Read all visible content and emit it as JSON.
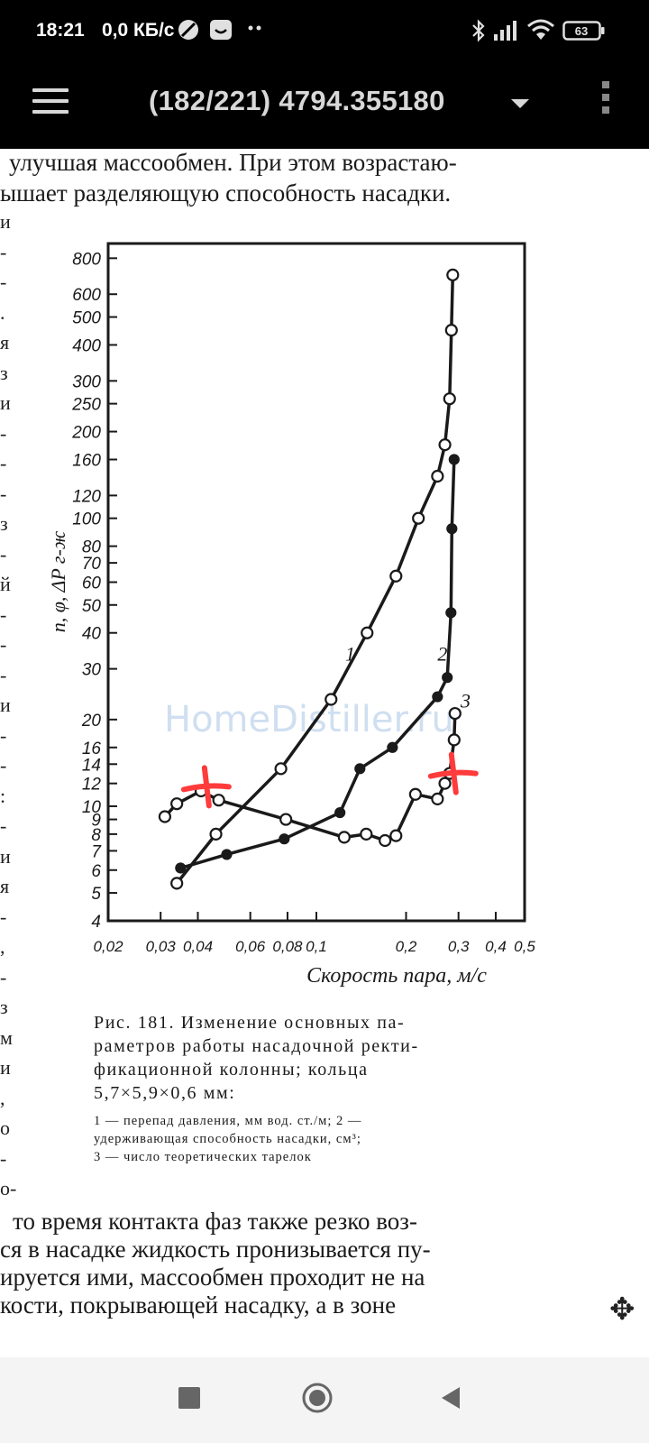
{
  "status_bar": {
    "time": "18:21",
    "speed": "0,0 КБ/с",
    "battery": "63",
    "icons": [
      "no-disturb-icon",
      "face-icon",
      "more-dots-icon",
      "bluetooth-icon",
      "signal-icon",
      "wifi-icon",
      "battery-icon"
    ]
  },
  "app_bar": {
    "title": "(182/221) 4794.355180",
    "icons": [
      "menu-icon",
      "dropdown-arrow-icon",
      "overflow-menu-icon"
    ]
  },
  "document": {
    "top_lines": [
      "улучшая массообмен. При этом возрастаю-",
      "ышает разделяющую способность насадки."
    ],
    "margin_chars": [
      "и",
      "-",
      "-",
      ".",
      "я",
      "з",
      "и",
      "-",
      "-",
      "-",
      "з",
      "-",
      "й",
      "-",
      "-",
      "-",
      "и",
      "-",
      "-",
      ":",
      "-",
      "и",
      "я",
      "-",
      ",",
      "-",
      "з",
      "м",
      "и",
      ",",
      "о",
      "-",
      "о-"
    ],
    "caption": [
      "Рис. 181. Изменение основных па-",
      "раметров работы насадочной ректи-",
      "фикационной колонны; кольца",
      "5,7×5,9×0,6 мм:"
    ],
    "legend": [
      "1 — перепад давления, мм вод. ст./м; 2 —",
      "удерживающая способность насадки, см³;",
      "3 — число теоретических тарелок"
    ],
    "bottom_lines": [
      "то время контакта фаз также резко воз-",
      "ся в насадке жидкость пронизывается пу-",
      "ируется ими, массообмен проходит не на",
      "кости, покрывающей насадку, а в зоне"
    ],
    "watermark": "HomeDistiller.ru"
  },
  "chart_data": {
    "type": "line",
    "ylabel": "n, φ, ΔP г-ж",
    "xlabel": "Скорость пара, м/с",
    "x_scale": "log",
    "y_scale": "log",
    "xlim": [
      0.02,
      0.5
    ],
    "ylim": [
      4,
      900
    ],
    "x_ticks": [
      "0,02",
      "0,03",
      "0,04",
      "0,06",
      "0,08",
      "0,1",
      "0,2",
      "0,3",
      "0,4",
      "0,5"
    ],
    "x_tick_values": [
      0.02,
      0.03,
      0.04,
      0.06,
      0.08,
      0.1,
      0.2,
      0.3,
      0.4,
      0.5
    ],
    "y_ticks": [
      "4",
      "5",
      "6",
      "7",
      "8",
      "9",
      "10",
      "12",
      "14",
      "16",
      "20",
      "30",
      "40",
      "50",
      "60",
      "70",
      "80",
      "100",
      "120",
      "160",
      "200",
      "250",
      "300",
      "400",
      "500",
      "600",
      "800"
    ],
    "y_tick_values": [
      4,
      5,
      6,
      7,
      8,
      9,
      10,
      12,
      14,
      16,
      20,
      30,
      40,
      50,
      60,
      70,
      80,
      100,
      120,
      160,
      200,
      250,
      300,
      400,
      500,
      600,
      800
    ],
    "series": [
      {
        "name": "1",
        "marker": "open",
        "points": [
          [
            0.034,
            5.4
          ],
          [
            0.046,
            8.0
          ],
          [
            0.076,
            13.5
          ],
          [
            0.112,
            23.5
          ],
          [
            0.148,
            40.0
          ],
          [
            0.185,
            63.0
          ],
          [
            0.22,
            100.0
          ],
          [
            0.255,
            140.0
          ],
          [
            0.27,
            180.0
          ],
          [
            0.28,
            260.0
          ],
          [
            0.284,
            450.0
          ],
          [
            0.287,
            700.0
          ]
        ]
      },
      {
        "name": "2",
        "marker": "filled",
        "points": [
          [
            0.035,
            6.1
          ],
          [
            0.05,
            6.8
          ],
          [
            0.078,
            7.7
          ],
          [
            0.12,
            9.5
          ],
          [
            0.14,
            13.5
          ],
          [
            0.18,
            16.0
          ],
          [
            0.255,
            24.0
          ],
          [
            0.275,
            28.0
          ],
          [
            0.283,
            47.0
          ],
          [
            0.285,
            92.0
          ],
          [
            0.29,
            160.0
          ]
        ]
      },
      {
        "name": "3",
        "marker": "open",
        "points": [
          [
            0.031,
            9.2
          ],
          [
            0.034,
            10.2
          ],
          [
            0.041,
            11.3
          ],
          [
            0.047,
            10.5
          ],
          [
            0.079,
            9.0
          ],
          [
            0.124,
            7.8
          ],
          [
            0.147,
            8.0
          ],
          [
            0.17,
            7.6
          ],
          [
            0.185,
            7.9
          ],
          [
            0.215,
            11.0
          ],
          [
            0.255,
            10.6
          ],
          [
            0.27,
            12.0
          ],
          [
            0.28,
            13.0
          ],
          [
            0.29,
            17.0
          ],
          [
            0.292,
            21.0
          ]
        ]
      }
    ],
    "annotations": [
      "1",
      "2",
      "3"
    ],
    "grid": false,
    "red_marks": "two red cross marks drawn by hand"
  },
  "navbar": {
    "icons": [
      "recent-apps-icon",
      "home-icon",
      "back-icon"
    ]
  },
  "colors": {
    "status_bg": "#000000",
    "page_bg": "#ffffff",
    "ink": "#1a1a1a",
    "red_mark": "#ff3b3b",
    "watermark": "#a9c6e6"
  }
}
